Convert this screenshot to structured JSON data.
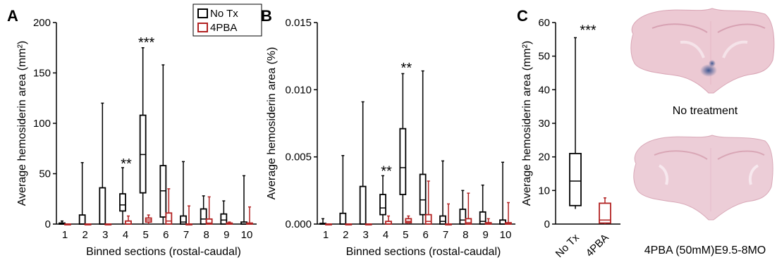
{
  "colors": {
    "no_tx": "#000000",
    "fourpba": "#b22222"
  },
  "chart_data": [
    {
      "panel": "A",
      "type": "box",
      "ylabel": "Average hemosiderin area (mm²)",
      "xlabel": "Binned sections (rostal-caudal)",
      "ylim": [
        0,
        200
      ],
      "yticks": [
        "0",
        "50",
        "100",
        "150",
        "200"
      ],
      "categories": [
        "1",
        "2",
        "3",
        "4",
        "5",
        "6",
        "7",
        "8",
        "9",
        "10"
      ],
      "legend": [
        "No Tx",
        "4PBA"
      ],
      "series": [
        {
          "name": "No Tx",
          "boxes": [
            {
              "min": 0,
              "q1": 0,
              "median": 0,
              "q3": 1,
              "max": 3
            },
            {
              "min": 0,
              "q1": 0,
              "median": 0,
              "q3": 9,
              "max": 61
            },
            {
              "min": 0,
              "q1": 0,
              "median": 0,
              "q3": 36,
              "max": 120
            },
            {
              "min": 0,
              "q1": 13,
              "median": 19,
              "q3": 30,
              "max": 56
            },
            {
              "min": 0,
              "q1": 31,
              "median": 69,
              "q3": 108,
              "max": 175
            },
            {
              "min": 0,
              "q1": 7,
              "median": 33,
              "q3": 58,
              "max": 158
            },
            {
              "min": 0,
              "q1": 0,
              "median": 2,
              "q3": 8,
              "max": 62
            },
            {
              "min": 0,
              "q1": 0,
              "median": 5,
              "q3": 15,
              "max": 28
            },
            {
              "min": 0,
              "q1": 0,
              "median": 4,
              "q3": 10,
              "max": 23
            },
            {
              "min": 0,
              "q1": 0,
              "median": 0,
              "q3": 2,
              "max": 48
            }
          ]
        },
        {
          "name": "4PBA",
          "boxes": [
            {
              "min": 0,
              "q1": 0,
              "median": 0,
              "q3": 0,
              "max": 0
            },
            {
              "min": 0,
              "q1": 0,
              "median": 0,
              "q3": 0,
              "max": 0
            },
            {
              "min": 0,
              "q1": 0,
              "median": 0,
              "q3": 0,
              "max": 0
            },
            {
              "min": 0,
              "q1": 0,
              "median": 0,
              "q3": 3,
              "max": 8
            },
            {
              "min": 0,
              "q1": 2,
              "median": 4,
              "q3": 6,
              "max": 9
            },
            {
              "min": 0,
              "q1": 0,
              "median": 3,
              "q3": 11,
              "max": 35
            },
            {
              "min": 0,
              "q1": 0,
              "median": 0,
              "q3": 0,
              "max": 18
            },
            {
              "min": 0,
              "q1": 0,
              "median": 1,
              "q3": 5,
              "max": 27
            },
            {
              "min": 0,
              "q1": 0,
              "median": 0,
              "q3": 1,
              "max": 2
            },
            {
              "min": 0,
              "q1": 0,
              "median": 0,
              "q3": 1,
              "max": 17
            }
          ]
        }
      ],
      "annotations": [
        {
          "category": "4",
          "text": "**",
          "y": 61
        },
        {
          "category": "5",
          "text": "***",
          "y": 181
        }
      ]
    },
    {
      "panel": "B",
      "type": "box",
      "ylabel": "Average hemosiderin area (%)",
      "xlabel": "Binned sections (rostal-caudal)",
      "ylim": [
        0,
        0.015
      ],
      "yticks": [
        "0.000",
        "0.005",
        "0.010",
        "0.015"
      ],
      "categories": [
        "1",
        "2",
        "3",
        "4",
        "5",
        "6",
        "7",
        "8",
        "9",
        "10"
      ],
      "series": [
        {
          "name": "No Tx",
          "boxes": [
            {
              "min": 0,
              "q1": 0,
              "median": 0,
              "q3": 5e-05,
              "max": 0.0004
            },
            {
              "min": 0,
              "q1": 0,
              "median": 0,
              "q3": 0.0008,
              "max": 0.0051
            },
            {
              "min": 0,
              "q1": 0,
              "median": 0,
              "q3": 0.0028,
              "max": 0.0091
            },
            {
              "min": 0,
              "q1": 0.0007,
              "median": 0.0012,
              "q3": 0.0022,
              "max": 0.0036
            },
            {
              "min": 0,
              "q1": 0.0022,
              "median": 0.0042,
              "q3": 0.0071,
              "max": 0.0112
            },
            {
              "min": 0,
              "q1": 0.0007,
              "median": 0.0018,
              "q3": 0.0037,
              "max": 0.0114
            },
            {
              "min": 0,
              "q1": 0,
              "median": 0.0002,
              "q3": 0.0006,
              "max": 0.0047
            },
            {
              "min": 0,
              "q1": 0,
              "median": 0.0003,
              "q3": 0.0011,
              "max": 0.0025
            },
            {
              "min": 0,
              "q1": 0,
              "median": 0.0002,
              "q3": 0.0009,
              "max": 0.0029
            },
            {
              "min": 0,
              "q1": 0,
              "median": 0,
              "q3": 0.0003,
              "max": 0.0046
            }
          ]
        },
        {
          "name": "4PBA",
          "boxes": [
            {
              "min": 0,
              "q1": 0,
              "median": 0,
              "q3": 0,
              "max": 0
            },
            {
              "min": 0,
              "q1": 0,
              "median": 0,
              "q3": 0,
              "max": 0
            },
            {
              "min": 0,
              "q1": 0,
              "median": 0,
              "q3": 0,
              "max": 0
            },
            {
              "min": 0,
              "q1": 0,
              "median": 0,
              "q3": 0.0002,
              "max": 0.0006
            },
            {
              "min": 0,
              "q1": 0.0001,
              "median": 0.0002,
              "q3": 0.0004,
              "max": 0.0006
            },
            {
              "min": 0,
              "q1": 0,
              "median": 0.0002,
              "q3": 0.0007,
              "max": 0.0032
            },
            {
              "min": 0,
              "q1": 0,
              "median": 0,
              "q3": 0,
              "max": 0.0015
            },
            {
              "min": 0,
              "q1": 0,
              "median": 0.0001,
              "q3": 0.0004,
              "max": 0.0023
            },
            {
              "min": 0,
              "q1": 0,
              "median": 0,
              "q3": 0.0001,
              "max": 0.0004
            },
            {
              "min": 0,
              "q1": 0,
              "median": 0,
              "q3": 0.0001,
              "max": 0.0016
            }
          ]
        }
      ],
      "annotations": [
        {
          "category": "4",
          "text": "**",
          "y": 0.004
        },
        {
          "category": "5",
          "text": "**",
          "y": 0.0117
        }
      ]
    },
    {
      "panel": "C",
      "type": "box",
      "ylabel": "Average hemosiderin area (mm²)",
      "ylim": [
        0,
        60
      ],
      "yticks": [
        "0",
        "10",
        "20",
        "30",
        "40",
        "50",
        "60"
      ],
      "categories": [
        "No Tx",
        "4PBA"
      ],
      "series": [
        {
          "name": "No Tx",
          "boxes": [
            {
              "min": 4.5,
              "q1": 5.5,
              "median": 12.8,
              "q3": 21,
              "max": 55.5
            }
          ]
        },
        {
          "name": "4PBA",
          "boxes": [
            {
              "min": 0,
              "q1": 0.3,
              "median": 1.2,
              "q3": 6.2,
              "max": 7.8
            }
          ]
        }
      ],
      "annotations": [
        {
          "category": "No Tx",
          "text": "***",
          "y": 58
        }
      ]
    }
  ],
  "images": {
    "top_caption": "No treatment",
    "bottom_caption": "4PBA (50mM)E9.5-8MO"
  }
}
